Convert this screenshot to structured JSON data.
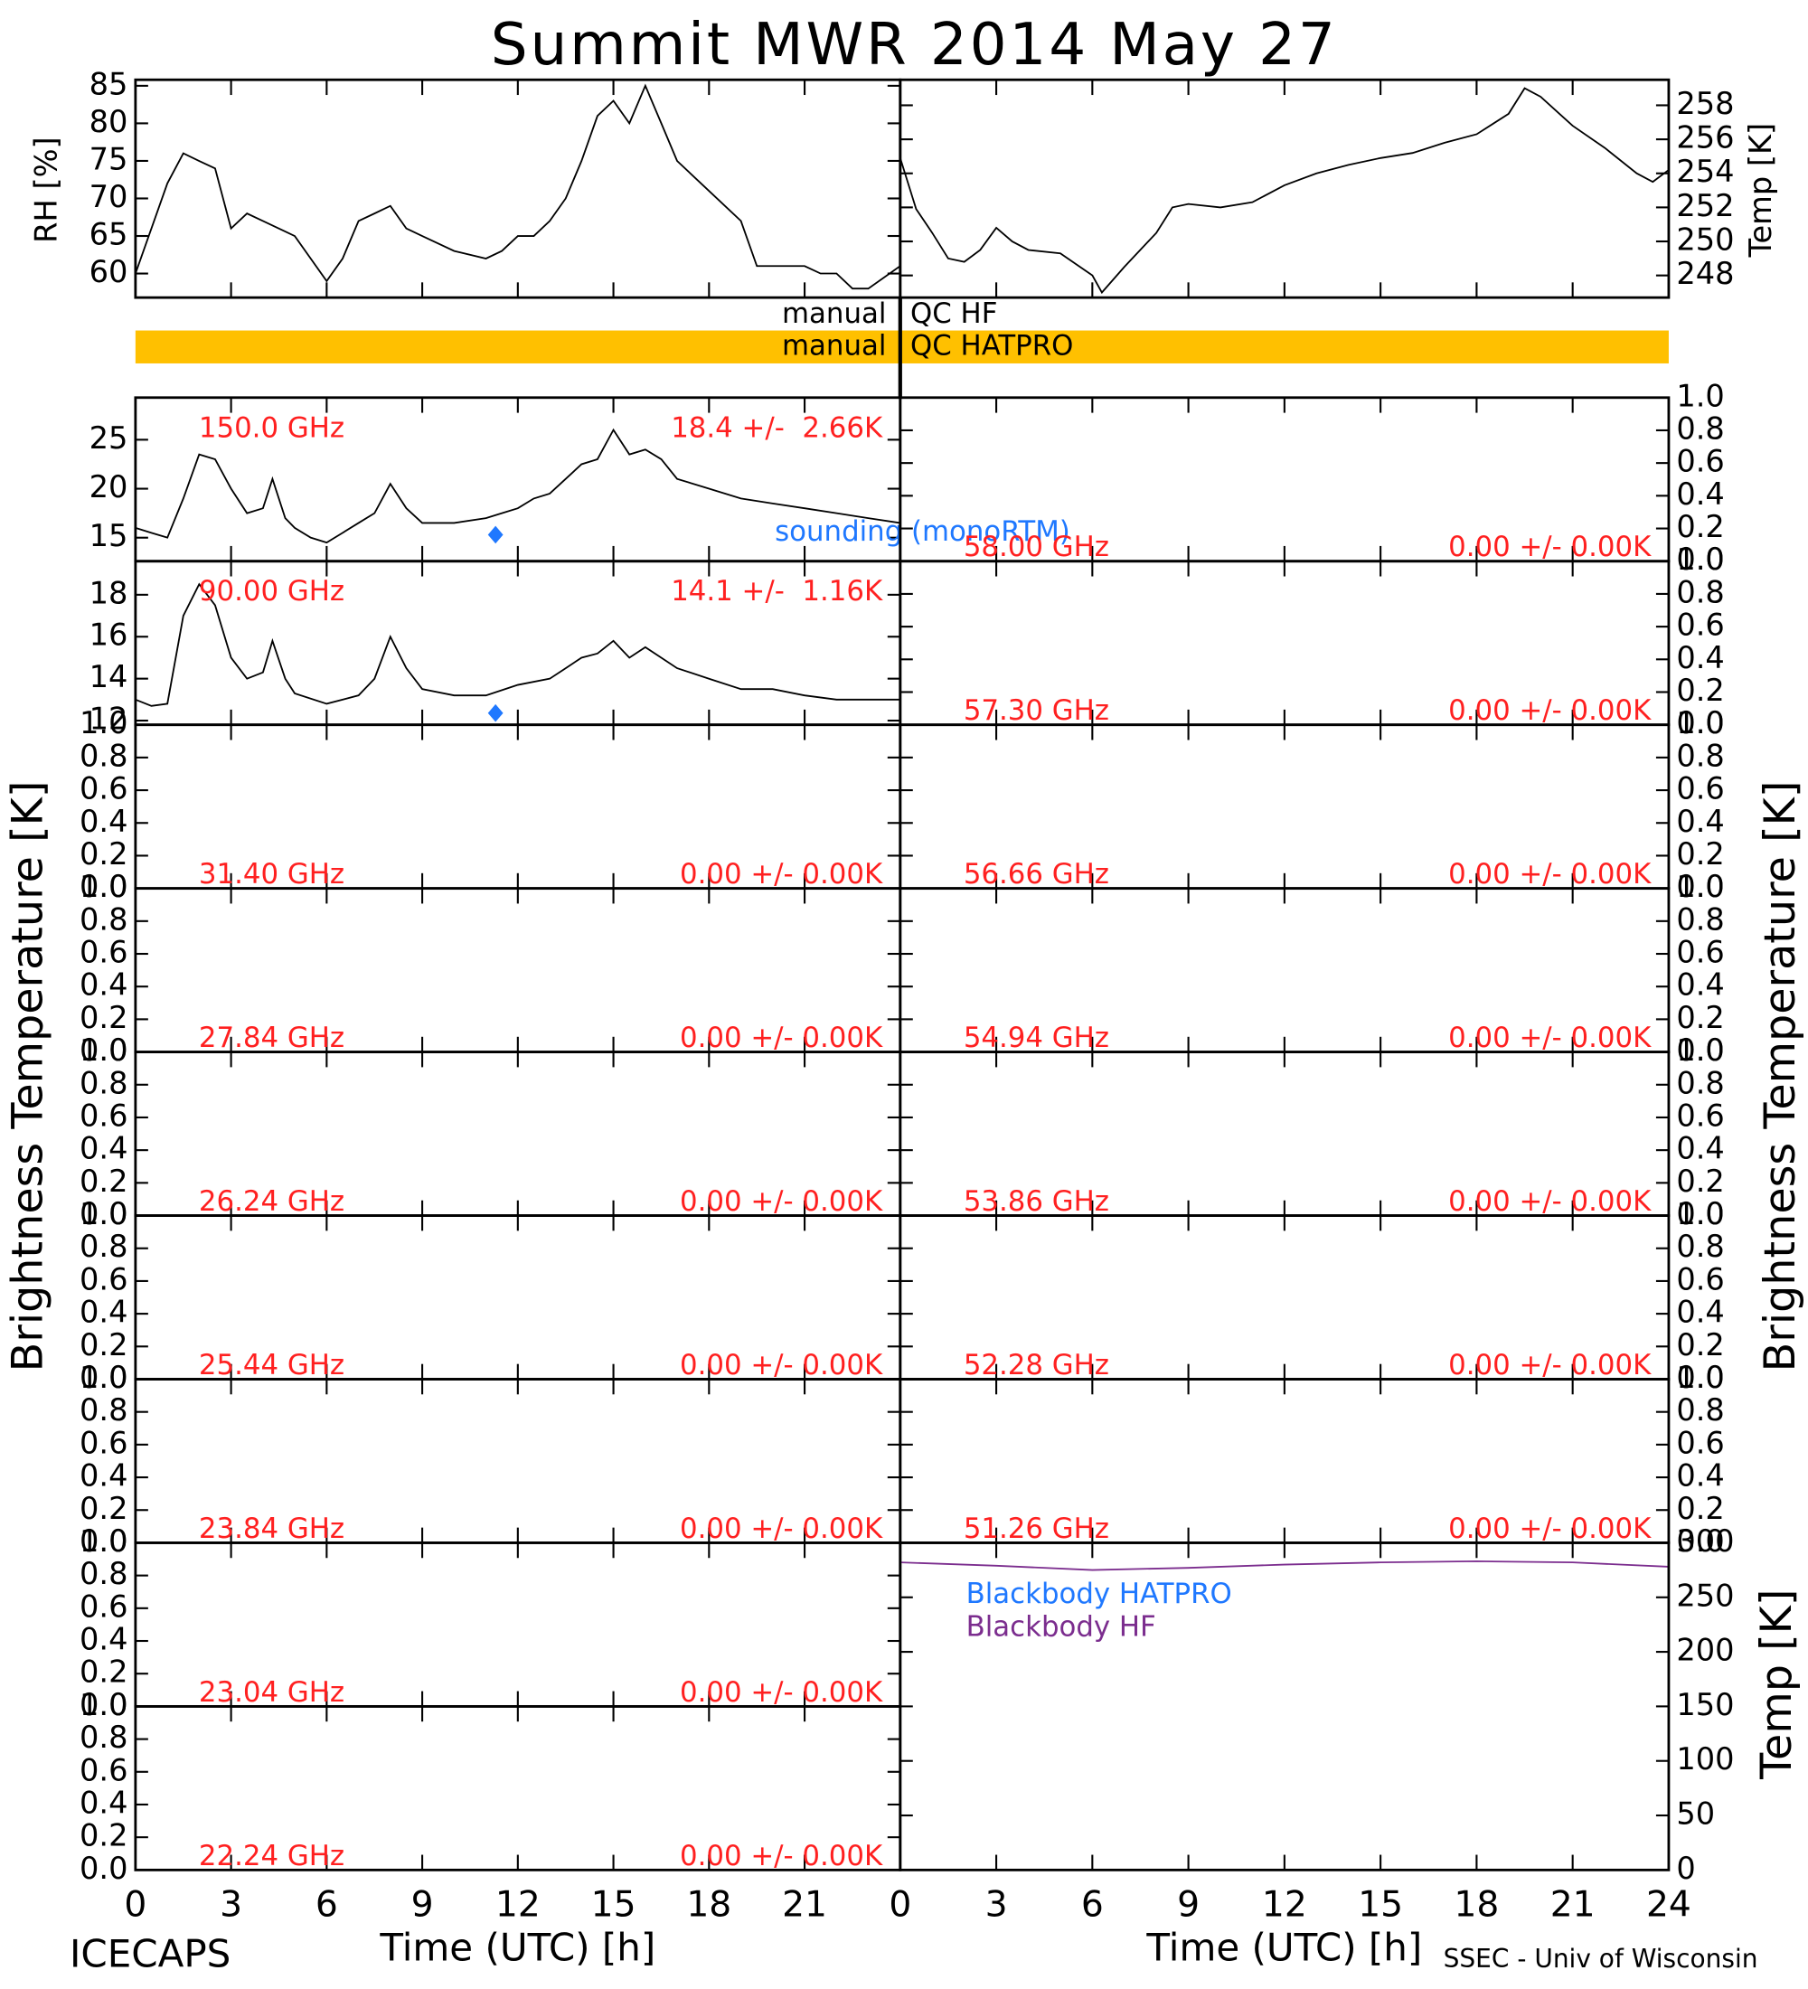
{
  "title": "Summit MWR 2014 May 27",
  "qc": [
    {
      "left": "manual",
      "right": "QC HF"
    },
    {
      "left": "manual",
      "right": "QC HATPRO",
      "color": "#ffc000"
    }
  ],
  "ylabel_tb": "Brightness Temperature [K]",
  "footer_left": "ICECAPS",
  "footer_right": "SSEC - Univ of Wisconsin",
  "chart_data": [
    {
      "type": "line",
      "ylabel": "RH [%]",
      "xlim": [
        0,
        24
      ],
      "ylim": [
        56.8,
        85.8
      ],
      "yticks": [
        60,
        65,
        70,
        75,
        80,
        85
      ],
      "series": [
        {
          "color": "#000000",
          "x": [
            0,
            0.5,
            1,
            1.5,
            2,
            2.5,
            3,
            3.5,
            4,
            5,
            5.5,
            6,
            6.5,
            7,
            7.5,
            8,
            8.5,
            9,
            10,
            11,
            11.5,
            12,
            12.5,
            13,
            13.5,
            14,
            14.5,
            15,
            15.5,
            16,
            16.5,
            17,
            18,
            19,
            19.5,
            20,
            21,
            21.5,
            22,
            22.5,
            23,
            24
          ],
          "values": [
            60,
            66,
            72,
            76,
            75,
            74,
            66,
            68,
            67,
            65,
            62,
            59,
            62,
            67,
            68,
            69,
            66,
            65,
            63,
            62,
            63,
            65,
            65,
            67,
            70,
            75,
            81,
            83,
            80,
            85,
            80,
            75,
            71,
            67,
            61,
            61,
            61,
            60,
            60,
            58,
            58,
            61
          ]
        }
      ]
    },
    {
      "type": "line",
      "ylabel": "Temp [K]",
      "xlim": [
        0,
        24
      ],
      "ylim": [
        246.7,
        259.5
      ],
      "yticks": [
        248,
        250,
        252,
        254,
        256,
        258
      ],
      "series": [
        {
          "color": "#000000",
          "x": [
            0,
            0.5,
            1,
            1.5,
            2,
            2.5,
            3,
            3.5,
            4,
            5,
            6,
            6.3,
            7,
            8,
            8.5,
            9,
            10,
            11,
            12,
            13,
            14,
            15,
            16,
            17,
            18,
            19,
            19.5,
            20,
            21,
            22,
            23,
            23.5,
            24
          ],
          "values": [
            254.9,
            251.9,
            250.5,
            249,
            248.8,
            249.5,
            250.8,
            250,
            249.5,
            249.3,
            248,
            247,
            248.5,
            250.5,
            252,
            252.2,
            252,
            252.3,
            253.3,
            254,
            254.5,
            254.9,
            255.2,
            255.8,
            256.3,
            257.5,
            259,
            258.5,
            256.8,
            255.5,
            254,
            253.5,
            254.2
          ]
        }
      ]
    },
    {
      "type": "line",
      "label": "150.0 GHz",
      "stats": "18.4 +/-  2.66K",
      "xlim": [
        0,
        24
      ],
      "ylim": [
        12.6,
        29.3
      ],
      "yticks": [
        15,
        20,
        25
      ],
      "series": [
        {
          "color": "#000000",
          "x": [
            0,
            0.5,
            1,
            1.5,
            2,
            2.5,
            3,
            3.5,
            4,
            4.3,
            4.7,
            5,
            5.5,
            6,
            6.5,
            7,
            7.5,
            8,
            8.5,
            9,
            10,
            11,
            11.5,
            12,
            12.5,
            13,
            13.5,
            14,
            14.5,
            15,
            15.5,
            16,
            16.5,
            17,
            18,
            19,
            20,
            21,
            22,
            23,
            24
          ],
          "values": [
            16,
            15.5,
            15,
            19,
            23.5,
            23,
            20,
            17.5,
            18,
            21,
            17,
            16,
            15,
            14.5,
            15.5,
            16.5,
            17.5,
            20.5,
            18,
            16.5,
            16.5,
            17,
            17.5,
            18,
            19,
            19.5,
            21,
            22.5,
            23,
            26,
            23.5,
            24,
            23,
            21,
            20,
            19,
            18.5,
            18,
            17.5,
            17,
            16.5
          ]
        },
        {
          "name": "sounding (monoRTM)",
          "color": "#1f78ff",
          "marker": "diamond",
          "x": [
            11.3
          ],
          "values": [
            15.3
          ]
        }
      ]
    },
    {
      "type": "line",
      "label": "90.00 GHz",
      "stats": "14.1 +/-  1.16K",
      "xlim": [
        0,
        24
      ],
      "ylim": [
        11.8,
        19.6
      ],
      "yticks": [
        12,
        14,
        16,
        18
      ],
      "series": [
        {
          "color": "#000000",
          "x": [
            0,
            0.5,
            1,
            1.5,
            2,
            2.5,
            3,
            3.5,
            4,
            4.3,
            4.7,
            5,
            6,
            7,
            7.5,
            8,
            8.5,
            9,
            10,
            11,
            12,
            13,
            13.5,
            14,
            14.5,
            15,
            15.5,
            16,
            16.5,
            17,
            18,
            19,
            20,
            21,
            22,
            23,
            24
          ],
          "values": [
            13,
            12.7,
            12.8,
            17,
            18.5,
            17.5,
            15,
            14,
            14.3,
            15.8,
            14,
            13.3,
            12.8,
            13.2,
            14,
            16,
            14.5,
            13.5,
            13.2,
            13.2,
            13.7,
            14,
            14.5,
            15,
            15.2,
            15.8,
            15,
            15.5,
            15,
            14.5,
            14,
            13.5,
            13.5,
            13.2,
            13,
            13,
            13
          ]
        },
        {
          "color": "#1f78ff",
          "marker": "diamond",
          "x": [
            11.3
          ],
          "values": [
            12.36
          ]
        }
      ]
    },
    {
      "type": "line",
      "label": "31.40 GHz",
      "stats": "0.00 +/- 0.00K",
      "ylim": [
        0,
        1
      ],
      "yticks": [
        {
          "value": 0,
          "label": "0.0"
        },
        {
          "value": 0.2,
          "label": "0.2"
        },
        {
          "value": 0.4,
          "label": "0.4"
        },
        {
          "value": 0.6,
          "label": "0.6"
        },
        {
          "value": 0.8,
          "label": "0.8"
        },
        {
          "value": 1,
          "label": "1.0"
        }
      ]
    },
    {
      "type": "line",
      "label": "27.84 GHz",
      "stats": "0.00 +/- 0.00K",
      "ylim": [
        0,
        1
      ],
      "yticks": [
        {
          "value": 0,
          "label": "0.0"
        },
        {
          "value": 0.2,
          "label": "0.2"
        },
        {
          "value": 0.4,
          "label": "0.4"
        },
        {
          "value": 0.6,
          "label": "0.6"
        },
        {
          "value": 0.8,
          "label": "0.8"
        },
        {
          "value": 1,
          "label": "1.0"
        }
      ]
    },
    {
      "type": "line",
      "label": "26.24 GHz",
      "stats": "0.00 +/- 0.00K",
      "ylim": [
        0,
        1
      ],
      "yticks": [
        {
          "value": 0,
          "label": "0.0"
        },
        {
          "value": 0.2,
          "label": "0.2"
        },
        {
          "value": 0.4,
          "label": "0.4"
        },
        {
          "value": 0.6,
          "label": "0.6"
        },
        {
          "value": 0.8,
          "label": "0.8"
        },
        {
          "value": 1,
          "label": "1.0"
        }
      ]
    },
    {
      "type": "line",
      "label": "25.44 GHz",
      "stats": "0.00 +/- 0.00K",
      "ylim": [
        0,
        1
      ],
      "yticks": [
        {
          "value": 0,
          "label": "0.0"
        },
        {
          "value": 0.2,
          "label": "0.2"
        },
        {
          "value": 0.4,
          "label": "0.4"
        },
        {
          "value": 0.6,
          "label": "0.6"
        },
        {
          "value": 0.8,
          "label": "0.8"
        },
        {
          "value": 1,
          "label": "1.0"
        }
      ]
    },
    {
      "type": "line",
      "label": "23.84 GHz",
      "stats": "0.00 +/- 0.00K",
      "ylim": [
        0,
        1
      ],
      "yticks": [
        {
          "value": 0,
          "label": "0.0"
        },
        {
          "value": 0.2,
          "label": "0.2"
        },
        {
          "value": 0.4,
          "label": "0.4"
        },
        {
          "value": 0.6,
          "label": "0.6"
        },
        {
          "value": 0.8,
          "label": "0.8"
        },
        {
          "value": 1,
          "label": "1.0"
        }
      ]
    },
    {
      "type": "line",
      "label": "23.04 GHz",
      "stats": "0.00 +/- 0.00K",
      "ylim": [
        0,
        1
      ],
      "yticks": [
        {
          "value": 0,
          "label": "0.0"
        },
        {
          "value": 0.2,
          "label": "0.2"
        },
        {
          "value": 0.4,
          "label": "0.4"
        },
        {
          "value": 0.6,
          "label": "0.6"
        },
        {
          "value": 0.8,
          "label": "0.8"
        },
        {
          "value": 1,
          "label": "1.0"
        }
      ]
    },
    {
      "type": "line",
      "label": "22.24 GHz",
      "stats": "0.00 +/- 0.00K",
      "xlabel": "Time (UTC) [h]",
      "xlim": [
        0,
        24
      ],
      "xticks": [
        0,
        3,
        6,
        9,
        12,
        15,
        18,
        21
      ],
      "ylim": [
        0,
        1
      ],
      "yticks": [
        {
          "value": 0,
          "label": "0.0"
        },
        {
          "value": 0.2,
          "label": "0.2"
        },
        {
          "value": 0.4,
          "label": "0.4"
        },
        {
          "value": 0.6,
          "label": "0.6"
        },
        {
          "value": 0.8,
          "label": "0.8"
        },
        {
          "value": 1,
          "label": "1.0"
        }
      ]
    },
    {
      "type": "line",
      "label": "58.00 GHz",
      "stats": "0.00 +/- 0.00K",
      "ylim": [
        0,
        1
      ],
      "yticks": [
        {
          "value": 0,
          "label": "0.0"
        },
        {
          "value": 0.2,
          "label": "0.2"
        },
        {
          "value": 0.4,
          "label": "0.4"
        },
        {
          "value": 0.6,
          "label": "0.6"
        },
        {
          "value": 0.8,
          "label": "0.8"
        },
        {
          "value": 1,
          "label": "1.0"
        }
      ]
    },
    {
      "type": "line",
      "label": "57.30 GHz",
      "stats": "0.00 +/- 0.00K",
      "ylim": [
        0,
        1
      ],
      "yticks": [
        {
          "value": 0,
          "label": "0.0"
        },
        {
          "value": 0.2,
          "label": "0.2"
        },
        {
          "value": 0.4,
          "label": "0.4"
        },
        {
          "value": 0.6,
          "label": "0.6"
        },
        {
          "value": 0.8,
          "label": "0.8"
        },
        {
          "value": 1,
          "label": "1.0"
        }
      ]
    },
    {
      "type": "line",
      "label": "56.66 GHz",
      "stats": "0.00 +/- 0.00K",
      "ylim": [
        0,
        1
      ],
      "yticks": [
        {
          "value": 0,
          "label": "0.0"
        },
        {
          "value": 0.2,
          "label": "0.2"
        },
        {
          "value": 0.4,
          "label": "0.4"
        },
        {
          "value": 0.6,
          "label": "0.6"
        },
        {
          "value": 0.8,
          "label": "0.8"
        },
        {
          "value": 1,
          "label": "1.0"
        }
      ]
    },
    {
      "type": "line",
      "label": "54.94 GHz",
      "stats": "0.00 +/- 0.00K",
      "ylim": [
        0,
        1
      ],
      "yticks": [
        {
          "value": 0,
          "label": "0.0"
        },
        {
          "value": 0.2,
          "label": "0.2"
        },
        {
          "value": 0.4,
          "label": "0.4"
        },
        {
          "value": 0.6,
          "label": "0.6"
        },
        {
          "value": 0.8,
          "label": "0.8"
        },
        {
          "value": 1,
          "label": "1.0"
        }
      ]
    },
    {
      "type": "line",
      "label": "53.86 GHz",
      "stats": "0.00 +/- 0.00K",
      "ylim": [
        0,
        1
      ],
      "yticks": [
        {
          "value": 0,
          "label": "0.0"
        },
        {
          "value": 0.2,
          "label": "0.2"
        },
        {
          "value": 0.4,
          "label": "0.4"
        },
        {
          "value": 0.6,
          "label": "0.6"
        },
        {
          "value": 0.8,
          "label": "0.8"
        },
        {
          "value": 1,
          "label": "1.0"
        }
      ]
    },
    {
      "type": "line",
      "label": "52.28 GHz",
      "stats": "0.00 +/- 0.00K",
      "ylim": [
        0,
        1
      ],
      "yticks": [
        {
          "value": 0,
          "label": "0.0"
        },
        {
          "value": 0.2,
          "label": "0.2"
        },
        {
          "value": 0.4,
          "label": "0.4"
        },
        {
          "value": 0.6,
          "label": "0.6"
        },
        {
          "value": 0.8,
          "label": "0.8"
        },
        {
          "value": 1,
          "label": "1.0"
        }
      ]
    },
    {
      "type": "line",
      "label": "51.26 GHz",
      "stats": "0.00 +/- 0.00K",
      "ylim": [
        0,
        1
      ],
      "yticks": [
        {
          "value": 0,
          "label": "0.0"
        },
        {
          "value": 0.2,
          "label": "0.2"
        },
        {
          "value": 0.4,
          "label": "0.4"
        },
        {
          "value": 0.6,
          "label": "0.6"
        },
        {
          "value": 0.8,
          "label": "0.8"
        },
        {
          "value": 1,
          "label": "1.0"
        }
      ]
    },
    {
      "type": "line",
      "ylabel": "Temp [K]",
      "xlabel": "Time (UTC) [h]",
      "xlim": [
        0,
        24
      ],
      "xticks": [
        0,
        3,
        6,
        9,
        12,
        15,
        18,
        21,
        24
      ],
      "ylim": [
        0,
        300
      ],
      "yticks": [
        0,
        50,
        100,
        150,
        200,
        250,
        300
      ],
      "series": [
        {
          "name": "Blackbody HATPRO",
          "color": "#1f78ff",
          "x": [
            0,
            3,
            6,
            9,
            12,
            15,
            18,
            21,
            24
          ],
          "values": [
            0,
            0,
            0,
            0,
            0,
            0,
            0,
            0,
            0
          ]
        },
        {
          "name": "Blackbody HF",
          "color": "#7b2d8e",
          "x": [
            0,
            3,
            6,
            9,
            12,
            15,
            18,
            21,
            24
          ],
          "values": [
            282,
            279,
            275,
            277,
            280,
            282,
            283,
            282,
            278
          ]
        }
      ]
    }
  ]
}
